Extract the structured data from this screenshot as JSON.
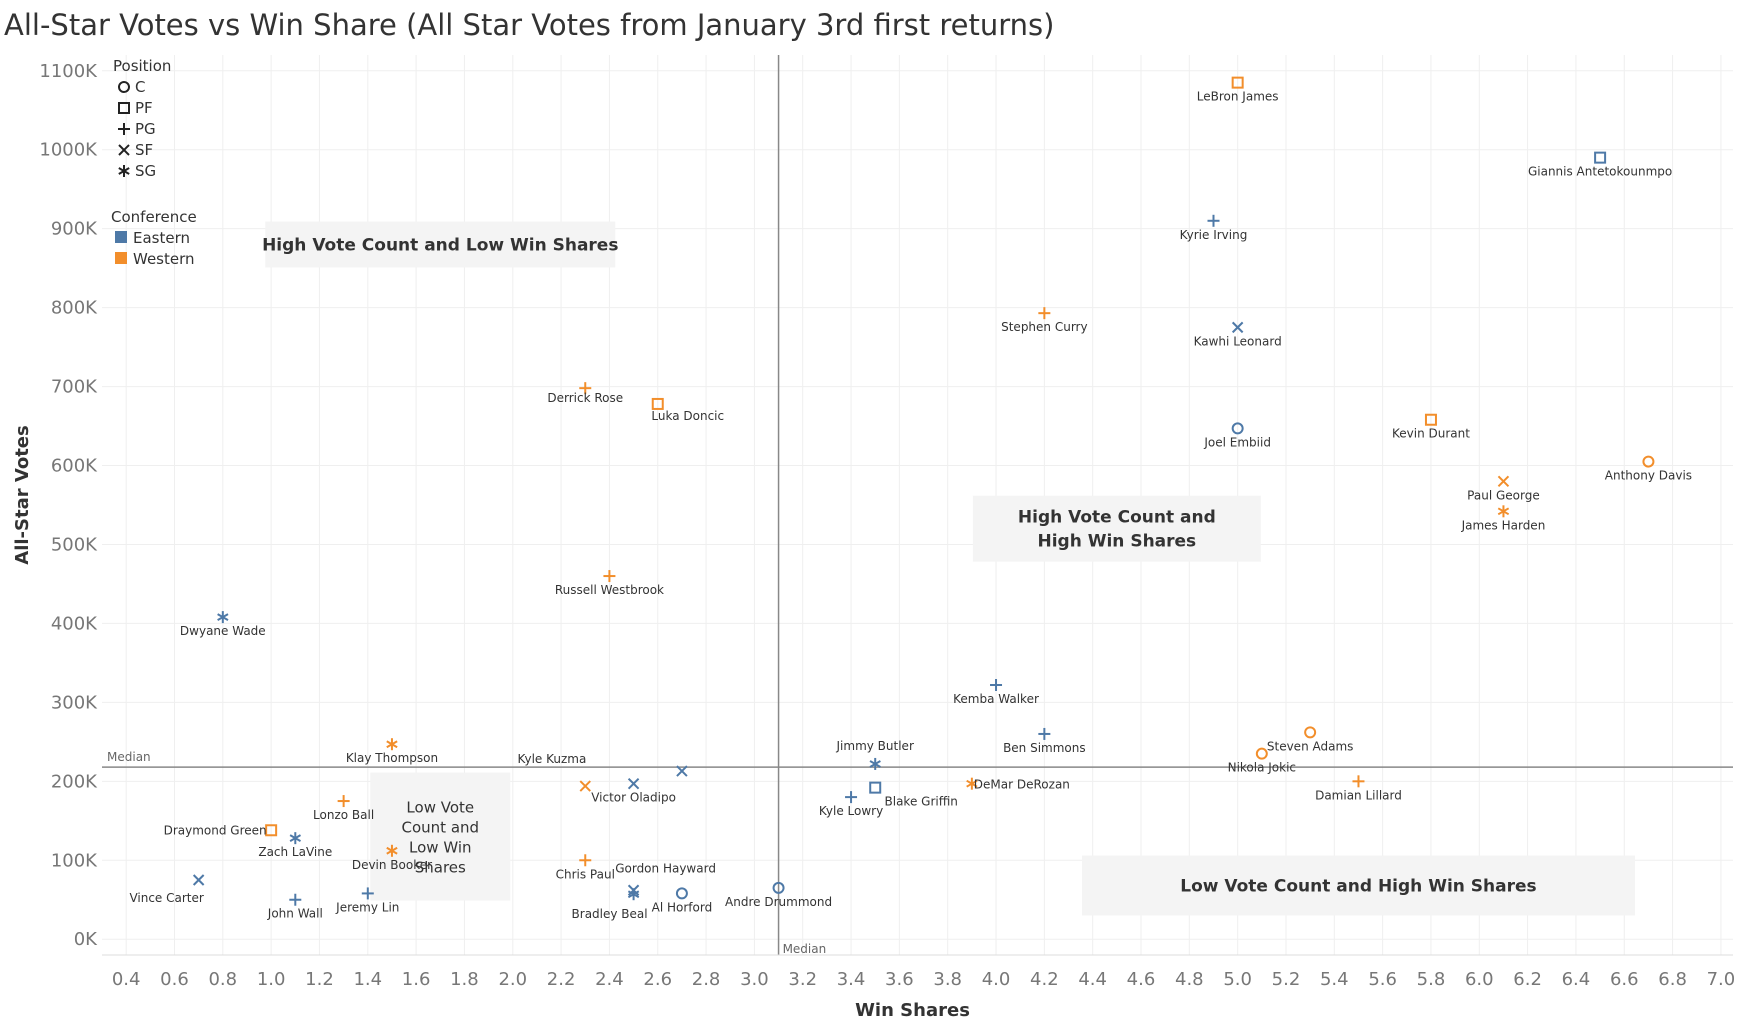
{
  "title": "All-Star Votes vs Win Share  (All Star Votes from January 3rd first returns)",
  "colors": {
    "Eastern": "#4e79a7",
    "Western": "#f28e2b"
  },
  "chart_data": {
    "type": "scatter",
    "xlabel": "Win Shares",
    "ylabel": "All-Star Votes",
    "xlim": [
      0.3,
      7.05
    ],
    "ylim": [
      -20000,
      1120000
    ],
    "x_ticks": [
      0.4,
      0.6,
      0.8,
      1.0,
      1.2,
      1.4,
      1.6,
      1.8,
      2.0,
      2.2,
      2.4,
      2.6,
      2.8,
      3.0,
      3.2,
      3.4,
      3.6,
      3.8,
      4.0,
      4.2,
      4.4,
      4.6,
      4.8,
      5.0,
      5.2,
      5.4,
      5.6,
      5.8,
      6.0,
      6.2,
      6.4,
      6.6,
      6.8,
      7.0
    ],
    "x_tick_labels": [
      "0.4",
      "0.6",
      "0.8",
      "1.0",
      "1.2",
      "1.4",
      "1.6",
      "1.8",
      "2.0",
      "2.2",
      "2.4",
      "2.6",
      "2.8",
      "3.0",
      "3.2",
      "3.4",
      "3.6",
      "3.8",
      "4.0",
      "4.2",
      "4.4",
      "4.6",
      "4.8",
      "5.0",
      "5.2",
      "5.4",
      "5.6",
      "5.8",
      "6.0",
      "6.2",
      "6.4",
      "6.6",
      "6.8",
      "7.0"
    ],
    "y_ticks": [
      0,
      100000,
      200000,
      300000,
      400000,
      500000,
      600000,
      700000,
      800000,
      900000,
      1000000,
      1100000
    ],
    "y_tick_labels": [
      "0K",
      "100K",
      "200K",
      "300K",
      "400K",
      "500K",
      "600K",
      "700K",
      "800K",
      "900K",
      "1000K",
      "1100K"
    ],
    "grid": true,
    "median_x": 3.1,
    "median_y": 218000,
    "median_label": "Median",
    "legend_position": "top-left",
    "legend_position_title": "Position",
    "legend_positions": [
      {
        "pos": "C",
        "label": "C"
      },
      {
        "pos": "PF",
        "label": "PF"
      },
      {
        "pos": "PG",
        "label": "PG"
      },
      {
        "pos": "SF",
        "label": "SF"
      },
      {
        "pos": "SG",
        "label": "SG"
      }
    ],
    "legend_conference_title": "Conference",
    "legend_conferences": [
      {
        "conf": "Eastern",
        "label": "Eastern"
      },
      {
        "conf": "Western",
        "label": "Western"
      }
    ],
    "quadrant_labels": [
      {
        "text": "High Vote Count and Low Win Shares",
        "x": 1.7,
        "y": 880000
      },
      {
        "text": "High Vote Count and High Win Shares",
        "x": 4.5,
        "y": 520000
      },
      {
        "text": "Low Vote Count and Low Win Shares",
        "x": 1.7,
        "y": 130000
      },
      {
        "text": "Low Vote Count and High Win Shares",
        "x": 5.5,
        "y": 68000
      }
    ],
    "points": [
      {
        "name": "LeBron James",
        "x": 5.0,
        "y": 1085000,
        "pos": "PF",
        "conf": "Western"
      },
      {
        "name": "Giannis Antetokounmpo",
        "x": 6.5,
        "y": 990000,
        "pos": "PF",
        "conf": "Eastern"
      },
      {
        "name": "Kyrie Irving",
        "x": 4.9,
        "y": 910000,
        "pos": "PG",
        "conf": "Eastern"
      },
      {
        "name": "Stephen Curry",
        "x": 4.2,
        "y": 793000,
        "pos": "PG",
        "conf": "Western"
      },
      {
        "name": "Kawhi Leonard",
        "x": 5.0,
        "y": 775000,
        "pos": "SF",
        "conf": "Eastern"
      },
      {
        "name": "Derrick Rose",
        "x": 2.3,
        "y": 698000,
        "pos": "PG",
        "conf": "Western"
      },
      {
        "name": "Luka Doncic",
        "x": 2.6,
        "y": 678000,
        "pos": "PF",
        "conf": "Western"
      },
      {
        "name": "Joel Embiid",
        "x": 5.0,
        "y": 647000,
        "pos": "C",
        "conf": "Eastern"
      },
      {
        "name": "Kevin Durant",
        "x": 5.8,
        "y": 658000,
        "pos": "PF",
        "conf": "Western"
      },
      {
        "name": "Anthony Davis",
        "x": 6.7,
        "y": 605000,
        "pos": "C",
        "conf": "Western"
      },
      {
        "name": "Paul George",
        "x": 6.1,
        "y": 580000,
        "pos": "SF",
        "conf": "Western"
      },
      {
        "name": "James Harden",
        "x": 6.1,
        "y": 542000,
        "pos": "SG",
        "conf": "Western"
      },
      {
        "name": "Russell Westbrook",
        "x": 2.4,
        "y": 460000,
        "pos": "PG",
        "conf": "Western"
      },
      {
        "name": "Dwyane Wade",
        "x": 0.8,
        "y": 408000,
        "pos": "SG",
        "conf": "Eastern"
      },
      {
        "name": "Kemba Walker",
        "x": 4.0,
        "y": 322000,
        "pos": "PG",
        "conf": "Eastern"
      },
      {
        "name": "Ben Simmons",
        "x": 4.2,
        "y": 260000,
        "pos": "PG",
        "conf": "Eastern"
      },
      {
        "name": "Steven Adams",
        "x": 5.3,
        "y": 262000,
        "pos": "C",
        "conf": "Western"
      },
      {
        "name": "Nikola Jokic",
        "x": 5.1,
        "y": 235000,
        "pos": "C",
        "conf": "Western"
      },
      {
        "name": "Jimmy Butler",
        "x": 3.5,
        "y": 222000,
        "pos": "SG",
        "conf": "Eastern"
      },
      {
        "name": "Klay Thompson",
        "x": 1.5,
        "y": 247000,
        "pos": "SG",
        "conf": "Western"
      },
      {
        "name": "Kyle Kuzma",
        "x": 2.7,
        "y": 213000,
        "pos": "SF",
        "conf": "Eastern"
      },
      {
        "name": "Victor Oladipo",
        "x": 2.5,
        "y": 197000,
        "pos": "SF",
        "conf": "Eastern"
      },
      {
        "name": "",
        "x": 2.3,
        "y": 194000,
        "pos": "SF",
        "conf": "Western"
      },
      {
        "name": "Kyle Lowry",
        "x": 3.4,
        "y": 180000,
        "pos": "PG",
        "conf": "Eastern"
      },
      {
        "name": "Blake Griffin",
        "x": 3.5,
        "y": 192000,
        "pos": "PF",
        "conf": "Eastern"
      },
      {
        "name": "DeMar DeRozan",
        "x": 3.9,
        "y": 197000,
        "pos": "SG",
        "conf": "Western"
      },
      {
        "name": "Damian Lillard",
        "x": 5.5,
        "y": 200000,
        "pos": "PG",
        "conf": "Western"
      },
      {
        "name": "Lonzo Ball",
        "x": 1.3,
        "y": 175000,
        "pos": "PG",
        "conf": "Western"
      },
      {
        "name": "Draymond Green",
        "x": 1.0,
        "y": 138000,
        "pos": "PF",
        "conf": "Western"
      },
      {
        "name": "Zach LaVine",
        "x": 1.1,
        "y": 128000,
        "pos": "SG",
        "conf": "Eastern"
      },
      {
        "name": "Devin Booker",
        "x": 1.5,
        "y": 112000,
        "pos": "SG",
        "conf": "Western"
      },
      {
        "name": "Chris Paul",
        "x": 2.3,
        "y": 100000,
        "pos": "PG",
        "conf": "Western"
      },
      {
        "name": "Gordon Hayward",
        "x": 2.5,
        "y": 62000,
        "pos": "SF",
        "conf": "Eastern"
      },
      {
        "name": "Bradley Beal",
        "x": 2.5,
        "y": 57000,
        "pos": "SG",
        "conf": "Eastern"
      },
      {
        "name": "Al Horford",
        "x": 2.7,
        "y": 58000,
        "pos": "C",
        "conf": "Eastern"
      },
      {
        "name": "Andre Drummond",
        "x": 3.1,
        "y": 65000,
        "pos": "C",
        "conf": "Eastern"
      },
      {
        "name": "Vince Carter",
        "x": 0.7,
        "y": 75000,
        "pos": "SF",
        "conf": "Eastern"
      },
      {
        "name": "John Wall",
        "x": 1.1,
        "y": 50000,
        "pos": "PG",
        "conf": "Eastern"
      },
      {
        "name": "Jeremy Lin",
        "x": 1.4,
        "y": 58000,
        "pos": "PG",
        "conf": "Eastern"
      }
    ]
  }
}
